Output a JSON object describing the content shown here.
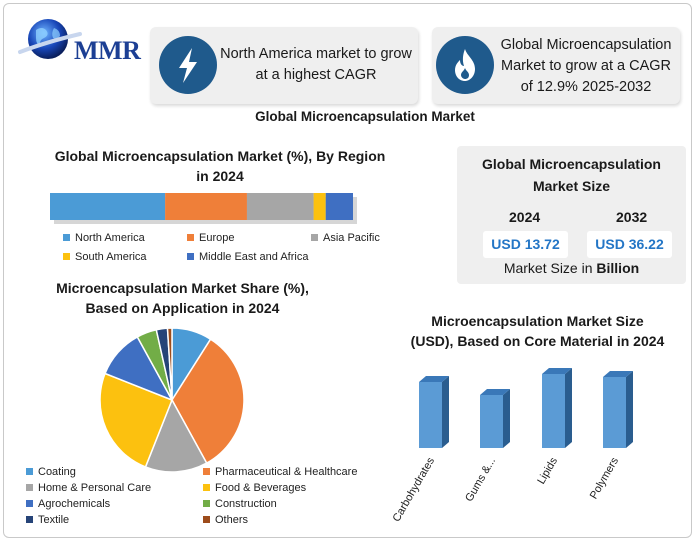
{
  "logo": {
    "text": "MMR",
    "icon": "globe-icon"
  },
  "callouts": [
    {
      "icon": "lightning-icon",
      "text_line1": "North America market to grow",
      "text_line2": "at a highest CAGR"
    },
    {
      "icon": "flame-icon",
      "text_line1": "Global Microencapsulation",
      "text_line2": "Market to grow at a CAGR",
      "text_line3": "of 12.9% 2025-2032"
    }
  ],
  "main_title": "Global Microencapsulation Market",
  "market_size": {
    "title_line1": "Global Microencapsulation",
    "title_line2": "Market Size",
    "year_start": "2024",
    "year_end": "2032",
    "value_start": "USD 13.72",
    "value_end": "USD 36.22",
    "unit_prefix": "Market Size in ",
    "unit_bold": "Billion"
  },
  "colors": {
    "blue": "#4b9bd6",
    "orange": "#ef7f39",
    "gray": "#a6a6a6",
    "yellow": "#fcc10f",
    "dark_blue": "#3f6fc2",
    "green": "#72ad47",
    "navy": "#264478",
    "brown": "#9d4c1b",
    "icon_bg": "#1f5a8c"
  },
  "chart_data": [
    {
      "type": "bar",
      "orientation": "stacked-horizontal",
      "title": "Global Microencapsulation Market (%), By Region in 2024",
      "title_line1": "Global Microencapsulation Market (%), By Region",
      "title_line2": "in 2024",
      "categories": [
        "North America",
        "Europe",
        "Asia Pacific",
        "South America",
        "Middle East and Africa"
      ],
      "values": [
        38,
        27,
        22,
        4,
        9
      ],
      "unit": "%",
      "legend_placement": "bottom"
    },
    {
      "type": "pie",
      "title": "Microencapsulation Market Share (%), Based on Application in 2024",
      "title_line1": "Microencapsulation Market Share (%),",
      "title_line2": "Based on Application in 2024",
      "categories": [
        "Coating",
        "Pharmaceutical & Healthcare",
        "Home & Personal Care",
        "Food & Beverages",
        "Agrochemicals",
        "Construction",
        "Textile",
        "Others"
      ],
      "values": [
        9,
        33,
        14,
        25,
        11,
        4.5,
        2.5,
        1
      ],
      "legend_placement": "bottom"
    },
    {
      "type": "bar",
      "title": "Microencapsulation Market Size (USD), Based on Core Material in 2024",
      "title_line1": "Microencapsulation Market Size",
      "title_line2": "(USD), Based on Core Material in 2024",
      "categories": [
        "Carbohydrates",
        "Gums &...",
        "Lipids",
        "Polymers"
      ],
      "values": [
        66,
        53,
        74,
        71
      ],
      "ylim": [
        0,
        100
      ],
      "grid": false
    }
  ]
}
